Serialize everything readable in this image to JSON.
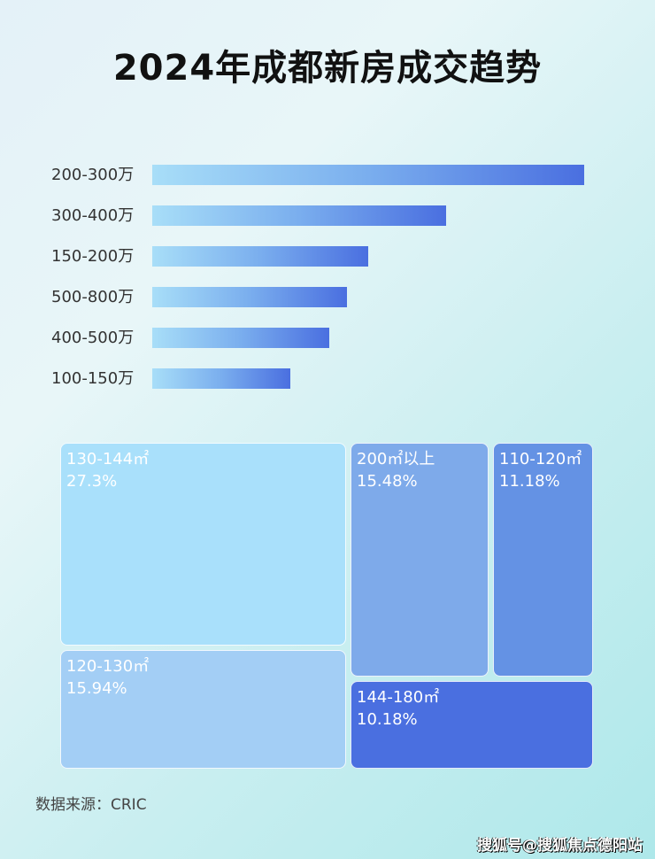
{
  "chart_data": [
    {
      "type": "bar",
      "orientation": "horizontal",
      "title": "2024年成都新房成交趋势",
      "categories": [
        "200-300万",
        "300-400万",
        "150-200万",
        "500-800万",
        "400-500万",
        "100-150万"
      ],
      "values": [
        100,
        68,
        50,
        45,
        41,
        32
      ],
      "grid": false,
      "colors": [
        "#a8def8",
        "#4a6fe0"
      ]
    },
    {
      "type": "treemap",
      "items": [
        {
          "label": "130-144㎡",
          "value": "27.3%",
          "color": "#a9e0fb"
        },
        {
          "label": "120-130㎡",
          "value": "15.94%",
          "color": "#a3cef5"
        },
        {
          "label": "200㎡以上",
          "value": "15.48%",
          "color": "#7eaaea"
        },
        {
          "label": "110-120㎡",
          "value": "11.18%",
          "color": "#6492e4"
        },
        {
          "label": "144-180㎡",
          "value": "10.18%",
          "color": "#4a6fe0"
        }
      ]
    }
  ],
  "source": "数据来源：CRIC",
  "watermark": "搜狐号@搜狐焦点德阳站"
}
